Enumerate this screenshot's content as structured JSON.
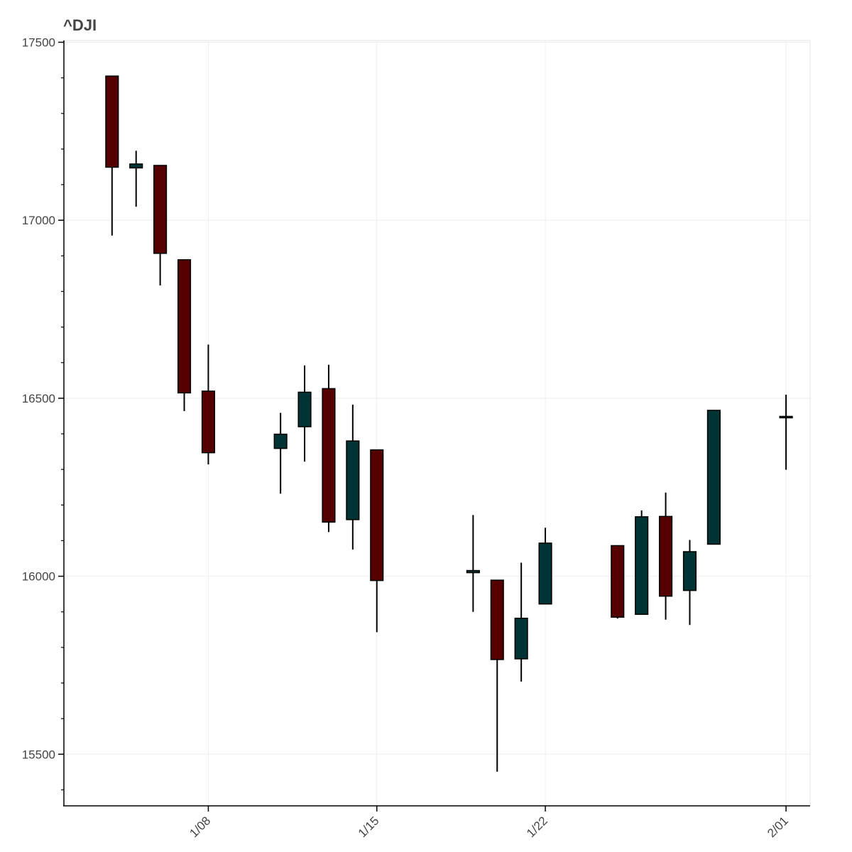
{
  "chart_data": {
    "type": "candlestick",
    "title": "^DJI",
    "xlabel": "",
    "ylabel": "",
    "ylim": [
      15355,
      17505
    ],
    "xlim": [
      "2016-01-02",
      "2016-02-02"
    ],
    "y_ticks": [
      15500,
      16000,
      16500,
      17000,
      17500
    ],
    "x_ticks": [
      {
        "date": "2016-01-08",
        "label": "1/08"
      },
      {
        "date": "2016-01-15",
        "label": "1/15"
      },
      {
        "date": "2016-01-22",
        "label": "1/22"
      },
      {
        "date": "2016-02-01",
        "label": "2/01"
      }
    ],
    "grid": true,
    "colors": {
      "up": "#003333",
      "down": "#550000",
      "wick": "#000000",
      "grid": "#eeeeee",
      "axis": "#000000"
    },
    "candles": [
      {
        "date": "2016-01-04",
        "open": 17405,
        "high": 17405,
        "low": 16957,
        "close": 17149
      },
      {
        "date": "2016-01-05",
        "open": 17147,
        "high": 17195,
        "low": 17038,
        "close": 17158
      },
      {
        "date": "2016-01-06",
        "open": 17154,
        "high": 17154,
        "low": 16817,
        "close": 16907
      },
      {
        "date": "2016-01-07",
        "open": 16889,
        "high": 16889,
        "low": 16464,
        "close": 16515
      },
      {
        "date": "2016-01-08",
        "open": 16520,
        "high": 16651,
        "low": 16314,
        "close": 16347
      },
      {
        "date": "2016-01-11",
        "open": 16359,
        "high": 16459,
        "low": 16232,
        "close": 16399
      },
      {
        "date": "2016-01-12",
        "open": 16420,
        "high": 16592,
        "low": 16322,
        "close": 16517
      },
      {
        "date": "2016-01-13",
        "open": 16527,
        "high": 16594,
        "low": 16124,
        "close": 16152
      },
      {
        "date": "2016-01-14",
        "open": 16159,
        "high": 16482,
        "low": 16075,
        "close": 16380
      },
      {
        "date": "2016-01-15",
        "open": 16355,
        "high": 16355,
        "low": 15843,
        "close": 15988
      },
      {
        "date": "2016-01-19",
        "open": 16010,
        "high": 16172,
        "low": 15900,
        "close": 16016
      },
      {
        "date": "2016-01-20",
        "open": 15989,
        "high": 15989,
        "low": 15451,
        "close": 15766
      },
      {
        "date": "2016-01-21",
        "open": 15768,
        "high": 16038,
        "low": 15704,
        "close": 15882
      },
      {
        "date": "2016-01-22",
        "open": 15922,
        "high": 16136,
        "low": 15922,
        "close": 16093
      },
      {
        "date": "2016-01-25",
        "open": 16086,
        "high": 16086,
        "low": 15881,
        "close": 15885
      },
      {
        "date": "2016-01-26",
        "open": 15893,
        "high": 16185,
        "low": 15893,
        "close": 16167
      },
      {
        "date": "2016-01-27",
        "open": 16168,
        "high": 16235,
        "low": 15878,
        "close": 15944
      },
      {
        "date": "2016-01-28",
        "open": 15960,
        "high": 16102,
        "low": 15863,
        "close": 16069
      },
      {
        "date": "2016-01-29",
        "open": 16090,
        "high": 16466,
        "low": 16090,
        "close": 16466
      },
      {
        "date": "2016-02-01",
        "open": 16449,
        "high": 16510,
        "low": 16299,
        "close": 16449
      }
    ]
  }
}
